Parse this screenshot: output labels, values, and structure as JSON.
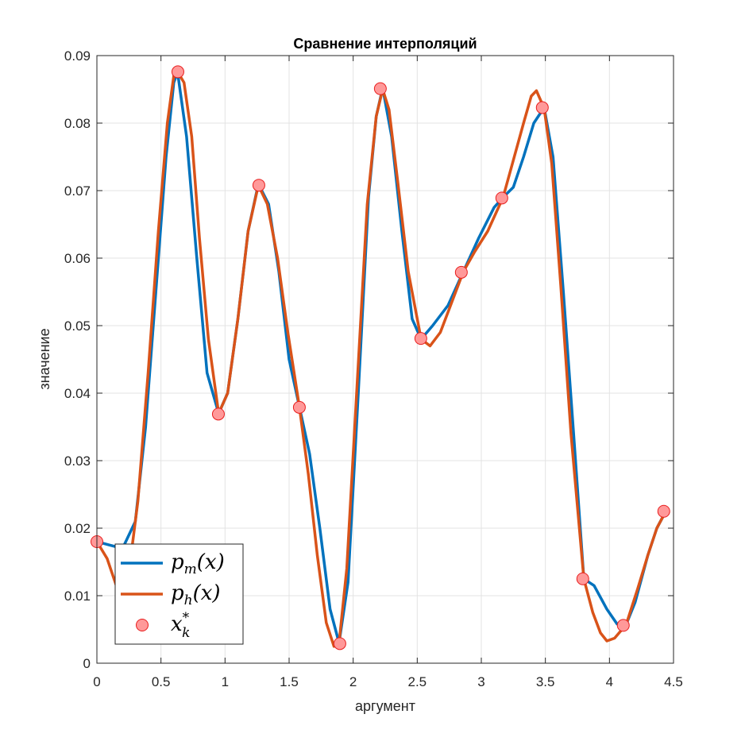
{
  "chart_data": {
    "type": "line",
    "title": "Сравнение интерполяций",
    "xlabel": "аргумент",
    "ylabel": "значение",
    "xlim": [
      0,
      4.5
    ],
    "ylim": [
      0,
      0.09
    ],
    "xticks": [
      0,
      0.5,
      1,
      1.5,
      2,
      2.5,
      3,
      3.5,
      4,
      4.5
    ],
    "xtick_labels": [
      "0",
      "0.5",
      "1",
      "1.5",
      "2",
      "2.5",
      "3",
      "3.5",
      "4",
      "4.5"
    ],
    "yticks": [
      0,
      0.01,
      0.02,
      0.03,
      0.04,
      0.05,
      0.06,
      0.07,
      0.08,
      0.09
    ],
    "ytick_labels": [
      "0",
      "0.01",
      "0.02",
      "0.03",
      "0.04",
      "0.05",
      "0.06",
      "0.07",
      "0.08",
      "0.09"
    ],
    "grid": true,
    "legend_position": "bottom-left",
    "series": [
      {
        "name": "p_m(x)",
        "legend_main": "p",
        "legend_sub": "m",
        "legend_arg": "(x)",
        "kind": "line",
        "color": "#0072BD",
        "x": [
          0,
          0.1,
          0.2,
          0.3,
          0.38,
          0.46,
          0.54,
          0.6,
          0.63,
          0.7,
          0.78,
          0.86,
          0.95,
          1.02,
          1.1,
          1.18,
          1.26,
          1.34,
          1.42,
          1.5,
          1.58,
          1.66,
          1.74,
          1.82,
          1.89,
          1.96,
          2.04,
          2.12,
          2.18,
          2.23,
          2.3,
          2.38,
          2.46,
          2.53,
          2.62,
          2.74,
          2.86,
          2.98,
          3.1,
          3.17,
          3.25,
          3.33,
          3.41,
          3.49,
          3.56,
          3.64,
          3.72,
          3.8,
          3.88,
          3.98,
          4.06,
          4.13,
          4.2,
          4.3,
          4.37,
          4.44
        ],
        "y": [
          0.018,
          0.0175,
          0.017,
          0.021,
          0.035,
          0.055,
          0.075,
          0.086,
          0.0875,
          0.078,
          0.06,
          0.043,
          0.037,
          0.04,
          0.051,
          0.064,
          0.071,
          0.068,
          0.058,
          0.045,
          0.038,
          0.031,
          0.02,
          0.008,
          0.003,
          0.012,
          0.04,
          0.069,
          0.081,
          0.0852,
          0.078,
          0.064,
          0.051,
          0.048,
          0.05,
          0.053,
          0.058,
          0.063,
          0.0675,
          0.069,
          0.0705,
          0.075,
          0.08,
          0.0823,
          0.075,
          0.055,
          0.034,
          0.0125,
          0.0115,
          0.008,
          0.0058,
          0.0057,
          0.009,
          0.016,
          0.02,
          0.0225
        ]
      },
      {
        "name": "p_h(x)",
        "legend_main": "p",
        "legend_sub": "h",
        "legend_arg": "(x)",
        "kind": "line",
        "color": "#D95319",
        "x": [
          0,
          0.08,
          0.16,
          0.24,
          0.32,
          0.4,
          0.48,
          0.55,
          0.6,
          0.63,
          0.68,
          0.74,
          0.8,
          0.87,
          0.95,
          1.02,
          1.1,
          1.18,
          1.26,
          1.33,
          1.41,
          1.49,
          1.58,
          1.65,
          1.72,
          1.79,
          1.85,
          1.89,
          1.95,
          2.03,
          2.11,
          2.18,
          2.23,
          2.28,
          2.35,
          2.43,
          2.53,
          2.6,
          2.68,
          2.77,
          2.86,
          2.95,
          3.05,
          3.17,
          3.25,
          3.33,
          3.39,
          3.43,
          3.49,
          3.55,
          3.62,
          3.7,
          3.8,
          3.87,
          3.93,
          3.98,
          4.04,
          4.13,
          4.22,
          4.3,
          4.37,
          4.44
        ],
        "y": [
          0.018,
          0.0155,
          0.011,
          0.012,
          0.024,
          0.043,
          0.064,
          0.08,
          0.087,
          0.0876,
          0.086,
          0.078,
          0.063,
          0.048,
          0.037,
          0.04,
          0.051,
          0.064,
          0.0708,
          0.068,
          0.06,
          0.049,
          0.038,
          0.028,
          0.016,
          0.006,
          0.0025,
          0.003,
          0.014,
          0.041,
          0.068,
          0.081,
          0.085,
          0.082,
          0.071,
          0.058,
          0.048,
          0.047,
          0.049,
          0.0535,
          0.058,
          0.061,
          0.064,
          0.069,
          0.0745,
          0.08,
          0.084,
          0.0848,
          0.0822,
          0.074,
          0.056,
          0.034,
          0.0125,
          0.0075,
          0.0045,
          0.0033,
          0.0037,
          0.0057,
          0.011,
          0.016,
          0.02,
          0.0225
        ]
      },
      {
        "name": "x_k^*",
        "legend_main": "x",
        "legend_sub": "k",
        "legend_sup": "*",
        "kind": "markers",
        "color": "#FF9999",
        "edge_color": "#E81D1D",
        "x": [
          0,
          0.316,
          0.632,
          0.948,
          1.264,
          1.58,
          1.896,
          2.212,
          2.528,
          2.844,
          3.16,
          3.476,
          3.792,
          4.108,
          4.424
        ],
        "y": [
          0.018,
          0.0112,
          0.0876,
          0.0369,
          0.0708,
          0.0379,
          0.0029,
          0.0851,
          0.0481,
          0.0579,
          0.0689,
          0.0823,
          0.0125,
          0.0056,
          0.0225
        ]
      }
    ]
  }
}
